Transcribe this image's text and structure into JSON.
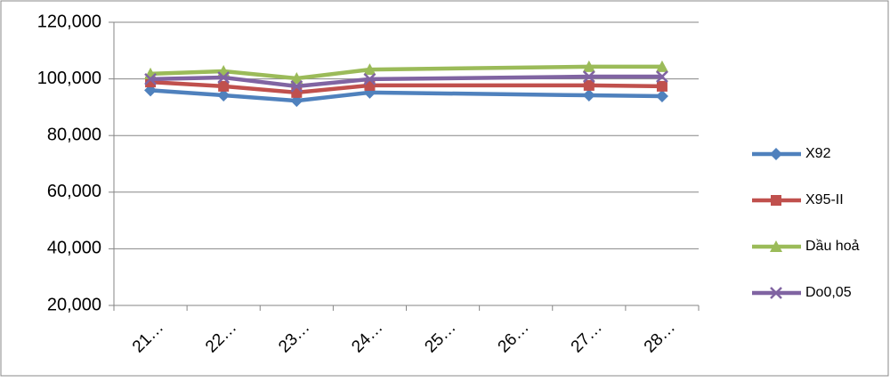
{
  "chart_data": {
    "type": "line",
    "categories": [
      "21…",
      "22…",
      "23…",
      "24…",
      "25…",
      "26…",
      "27…",
      "28…"
    ],
    "series": [
      {
        "name": "X92",
        "color": "#4f81bd",
        "marker": "diamond",
        "values": [
          96000,
          94200,
          92300,
          95200,
          null,
          null,
          94200,
          93900
        ]
      },
      {
        "name": "X95-II",
        "color": "#c0504d",
        "marker": "square",
        "values": [
          98900,
          97400,
          95200,
          97700,
          null,
          null,
          97700,
          97400
        ]
      },
      {
        "name": "Dầu hoả",
        "color": "#9bbb59",
        "marker": "triangle",
        "values": [
          101800,
          102700,
          100200,
          103300,
          null,
          null,
          104300,
          104300
        ]
      },
      {
        "name": "Do0,05",
        "color": "#8064a2",
        "marker": "x",
        "values": [
          99900,
          100500,
          97400,
          99900,
          null,
          null,
          100800,
          100800
        ]
      }
    ],
    "ylim": [
      20000,
      120000
    ],
    "yticks": [
      {
        "value": 20000,
        "label": "20,000"
      },
      {
        "value": 40000,
        "label": "40,000"
      },
      {
        "value": 60000,
        "label": "60,000"
      },
      {
        "value": 80000,
        "label": "80,000"
      },
      {
        "value": 100000,
        "label": "100,000"
      },
      {
        "value": 120000,
        "label": "120,000"
      }
    ],
    "grid": true,
    "span_gaps": true,
    "legend": "right"
  }
}
